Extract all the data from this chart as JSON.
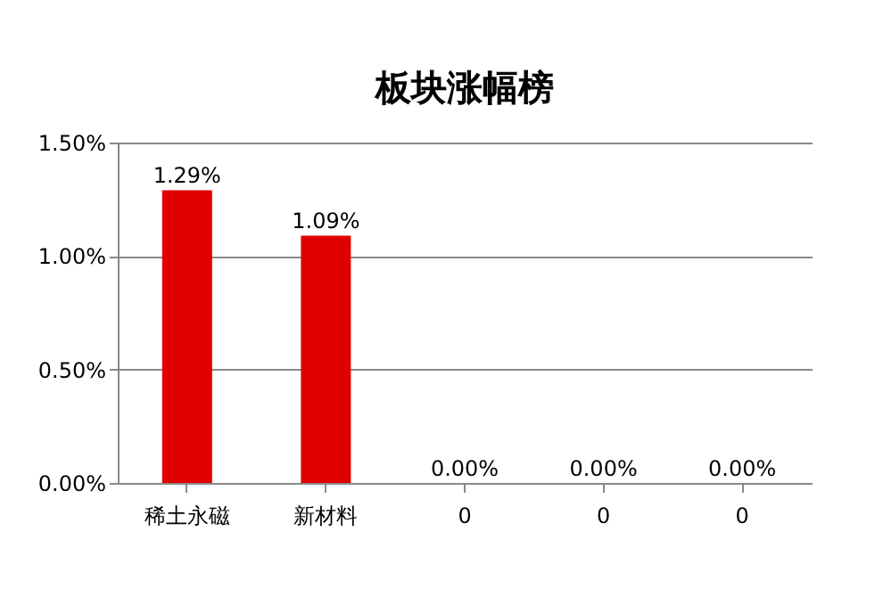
{
  "chart_data": {
    "type": "bar",
    "title": "板块涨幅榜",
    "categories": [
      "稀土永磁",
      "新材料",
      "0",
      "0",
      "0"
    ],
    "values": [
      1.29,
      1.09,
      0,
      0,
      0
    ],
    "value_labels": [
      "1.29%",
      "1.09%",
      "0.00%",
      "0.00%",
      "0.00%"
    ],
    "color": "#e00000",
    "ylim": [
      0,
      1.5
    ],
    "yticks": [
      {
        "value": 0,
        "label": "0.00%"
      },
      {
        "value": 0.5,
        "label": "0.50%"
      },
      {
        "value": 1.0,
        "label": "1.00%"
      },
      {
        "value": 1.5,
        "label": "1.50%"
      }
    ],
    "grid": "y"
  }
}
